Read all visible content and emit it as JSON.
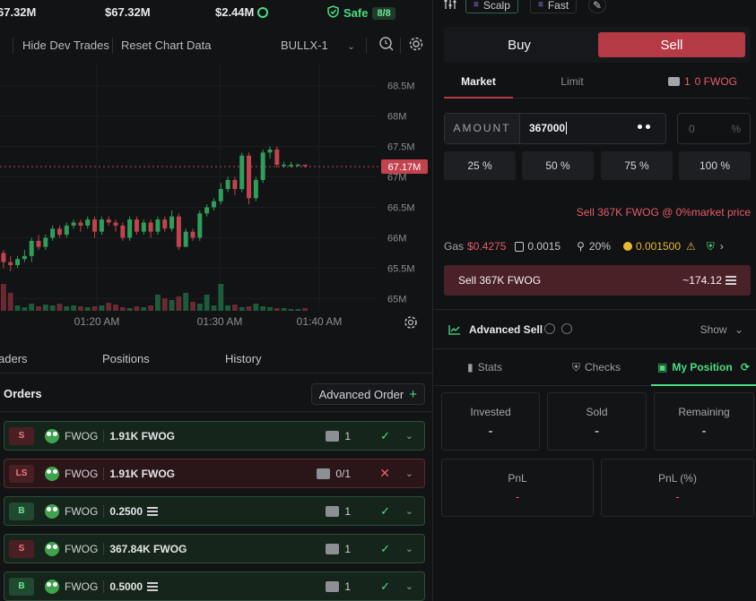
{
  "stats": {
    "price": "67.32M",
    "mcap": "$67.32M",
    "liquidity": "$2.44M",
    "safe_label": "Safe",
    "safe_score": "8/8"
  },
  "toolbar": {
    "hide_dev": "Hide Dev Trades",
    "reset_chart": "Reset Chart Data",
    "pair": "BULLX-1"
  },
  "chart_data": {
    "type": "candlestick",
    "y_ticks": [
      "68.5M",
      "68M",
      "67.5M",
      "67M",
      "66.5M",
      "66M",
      "65.5M",
      "65M"
    ],
    "x_ticks": [
      "01:20 AM",
      "01:30 AM",
      "01:40 AM"
    ],
    "current_price_label": "67.17M",
    "ylim": [
      64.8,
      68.7
    ],
    "candles": [
      [
        65.75,
        65.6,
        65.8,
        65.5
      ],
      [
        65.6,
        65.55,
        65.7,
        65.45
      ],
      [
        65.55,
        65.65,
        65.7,
        65.5
      ],
      [
        65.65,
        65.7,
        65.8,
        65.6
      ],
      [
        65.7,
        65.95,
        66.0,
        65.6
      ],
      [
        65.95,
        65.85,
        66.05,
        65.8
      ],
      [
        65.85,
        66.0,
        66.05,
        65.8
      ],
      [
        66.0,
        66.15,
        66.2,
        65.95
      ],
      [
        66.15,
        66.05,
        66.2,
        66.0
      ],
      [
        66.05,
        66.2,
        66.25,
        66.0
      ],
      [
        66.2,
        66.25,
        66.3,
        66.15
      ],
      [
        66.25,
        66.2,
        66.3,
        66.1
      ],
      [
        66.2,
        66.3,
        66.35,
        66.15
      ],
      [
        66.3,
        66.1,
        66.35,
        66.0
      ],
      [
        66.1,
        66.3,
        66.35,
        66.05
      ],
      [
        66.3,
        66.25,
        66.35,
        66.2
      ],
      [
        66.25,
        66.2,
        66.3,
        66.1
      ],
      [
        66.2,
        66.0,
        66.25,
        65.95
      ],
      [
        66.0,
        66.3,
        66.35,
        65.95
      ],
      [
        66.3,
        66.1,
        66.35,
        66.05
      ],
      [
        66.1,
        66.25,
        66.3,
        66.05
      ],
      [
        66.25,
        66.1,
        66.3,
        66.0
      ],
      [
        66.1,
        66.3,
        66.35,
        66.05
      ],
      [
        66.3,
        66.15,
        66.35,
        66.1
      ],
      [
        66.15,
        66.35,
        66.45,
        66.1
      ],
      [
        66.35,
        65.85,
        66.4,
        65.8
      ],
      [
        65.85,
        66.1,
        66.15,
        65.85
      ],
      [
        66.1,
        66.0,
        66.15,
        65.95
      ],
      [
        66.0,
        66.4,
        66.45,
        65.95
      ],
      [
        66.4,
        66.5,
        66.55,
        66.35
      ],
      [
        66.5,
        66.6,
        66.65,
        66.45
      ],
      [
        66.6,
        66.8,
        66.9,
        66.55
      ],
      [
        66.8,
        66.95,
        67.0,
        66.75
      ],
      [
        66.95,
        66.8,
        67.0,
        66.7
      ],
      [
        66.8,
        67.35,
        67.4,
        66.75
      ],
      [
        67.35,
        66.65,
        67.4,
        66.55
      ],
      [
        66.65,
        66.95,
        67.0,
        66.6
      ],
      [
        66.95,
        67.4,
        67.45,
        66.9
      ],
      [
        67.4,
        67.45,
        67.5,
        67.3
      ],
      [
        67.45,
        67.2,
        67.5,
        67.15
      ],
      [
        67.2,
        67.2,
        67.25,
        67.15
      ],
      [
        67.2,
        67.2,
        67.25,
        67.15
      ],
      [
        67.2,
        67.2,
        67.22,
        67.18
      ],
      [
        67.2,
        67.18,
        67.2,
        67.15
      ]
    ],
    "volumes": [
      30,
      20,
      6,
      4,
      8,
      5,
      7,
      6,
      8,
      5,
      6,
      5,
      4,
      5,
      6,
      9,
      7,
      4,
      3,
      5,
      4,
      6,
      18,
      14,
      12,
      16,
      20,
      10,
      8,
      18,
      6,
      30,
      6,
      7,
      4,
      5,
      8,
      5,
      4,
      3,
      3,
      2,
      2,
      3
    ]
  },
  "bottom_tabs": {
    "traders": "aders",
    "positions": "Positions",
    "history": "History"
  },
  "orders": {
    "title": "Orders",
    "advanced_order": "Advanced Order",
    "items": [
      {
        "type": "S",
        "token": "FWOG",
        "amount": "1.91K FWOG",
        "wallets": "1",
        "status": "ok",
        "style": "s",
        "sol": false
      },
      {
        "type": "LS",
        "token": "FWOG",
        "amount": "1.91K FWOG",
        "wallets": "0/1",
        "status": "fail",
        "style": "ls",
        "sol": false
      },
      {
        "type": "B",
        "token": "FWOG",
        "amount": "0.2500",
        "wallets": "1",
        "status": "ok",
        "style": "b",
        "sol": true
      },
      {
        "type": "S",
        "token": "FWOG",
        "amount": "367.84K FWOG",
        "wallets": "1",
        "status": "ok",
        "style": "s",
        "sol": false
      },
      {
        "type": "B",
        "token": "FWOG",
        "amount": "0.5000",
        "wallets": "1",
        "status": "ok",
        "style": "b",
        "sol": true
      }
    ]
  },
  "right": {
    "chips": {
      "scalp": "Scalp",
      "fast": "Fast"
    },
    "buy": "Buy",
    "sell": "Sell",
    "market": "Market",
    "limit": "Limit",
    "balance_count": "1",
    "balance": "0 FWOG",
    "amount_label": "AMOUNT",
    "amount_value": "367000",
    "pct_value": "0",
    "pct_unit": "%",
    "pcts": [
      "25 %",
      "50 %",
      "75 %",
      "100 %"
    ],
    "sell_note": "Sell 367K FWOG @ 0%market price",
    "gas_label": "Gas",
    "gas_value": "$0.4275",
    "priority": "0.0015",
    "slippage": "20%",
    "bribe": "0.001500",
    "sell_bar_label": "Sell 367K FWOG",
    "sell_bar_value": "~174.12",
    "advanced_sell": "Advanced Sell",
    "show": "Show",
    "tabs": {
      "stats": "Stats",
      "checks": "Checks",
      "my_position": "My Position"
    },
    "cards": {
      "invested": {
        "label": "Invested",
        "value": "-"
      },
      "sold": {
        "label": "Sold",
        "value": "-"
      },
      "remaining": {
        "label": "Remaining",
        "value": "-"
      },
      "pnl": {
        "label": "PnL",
        "value": "-"
      },
      "pnl_pct": {
        "label": "PnL (%)",
        "value": "-"
      }
    }
  },
  "colors": {
    "up": "#2e9e5b",
    "down": "#c2434e",
    "accent_red": "#b53a45",
    "accent_green": "#4ade80"
  }
}
